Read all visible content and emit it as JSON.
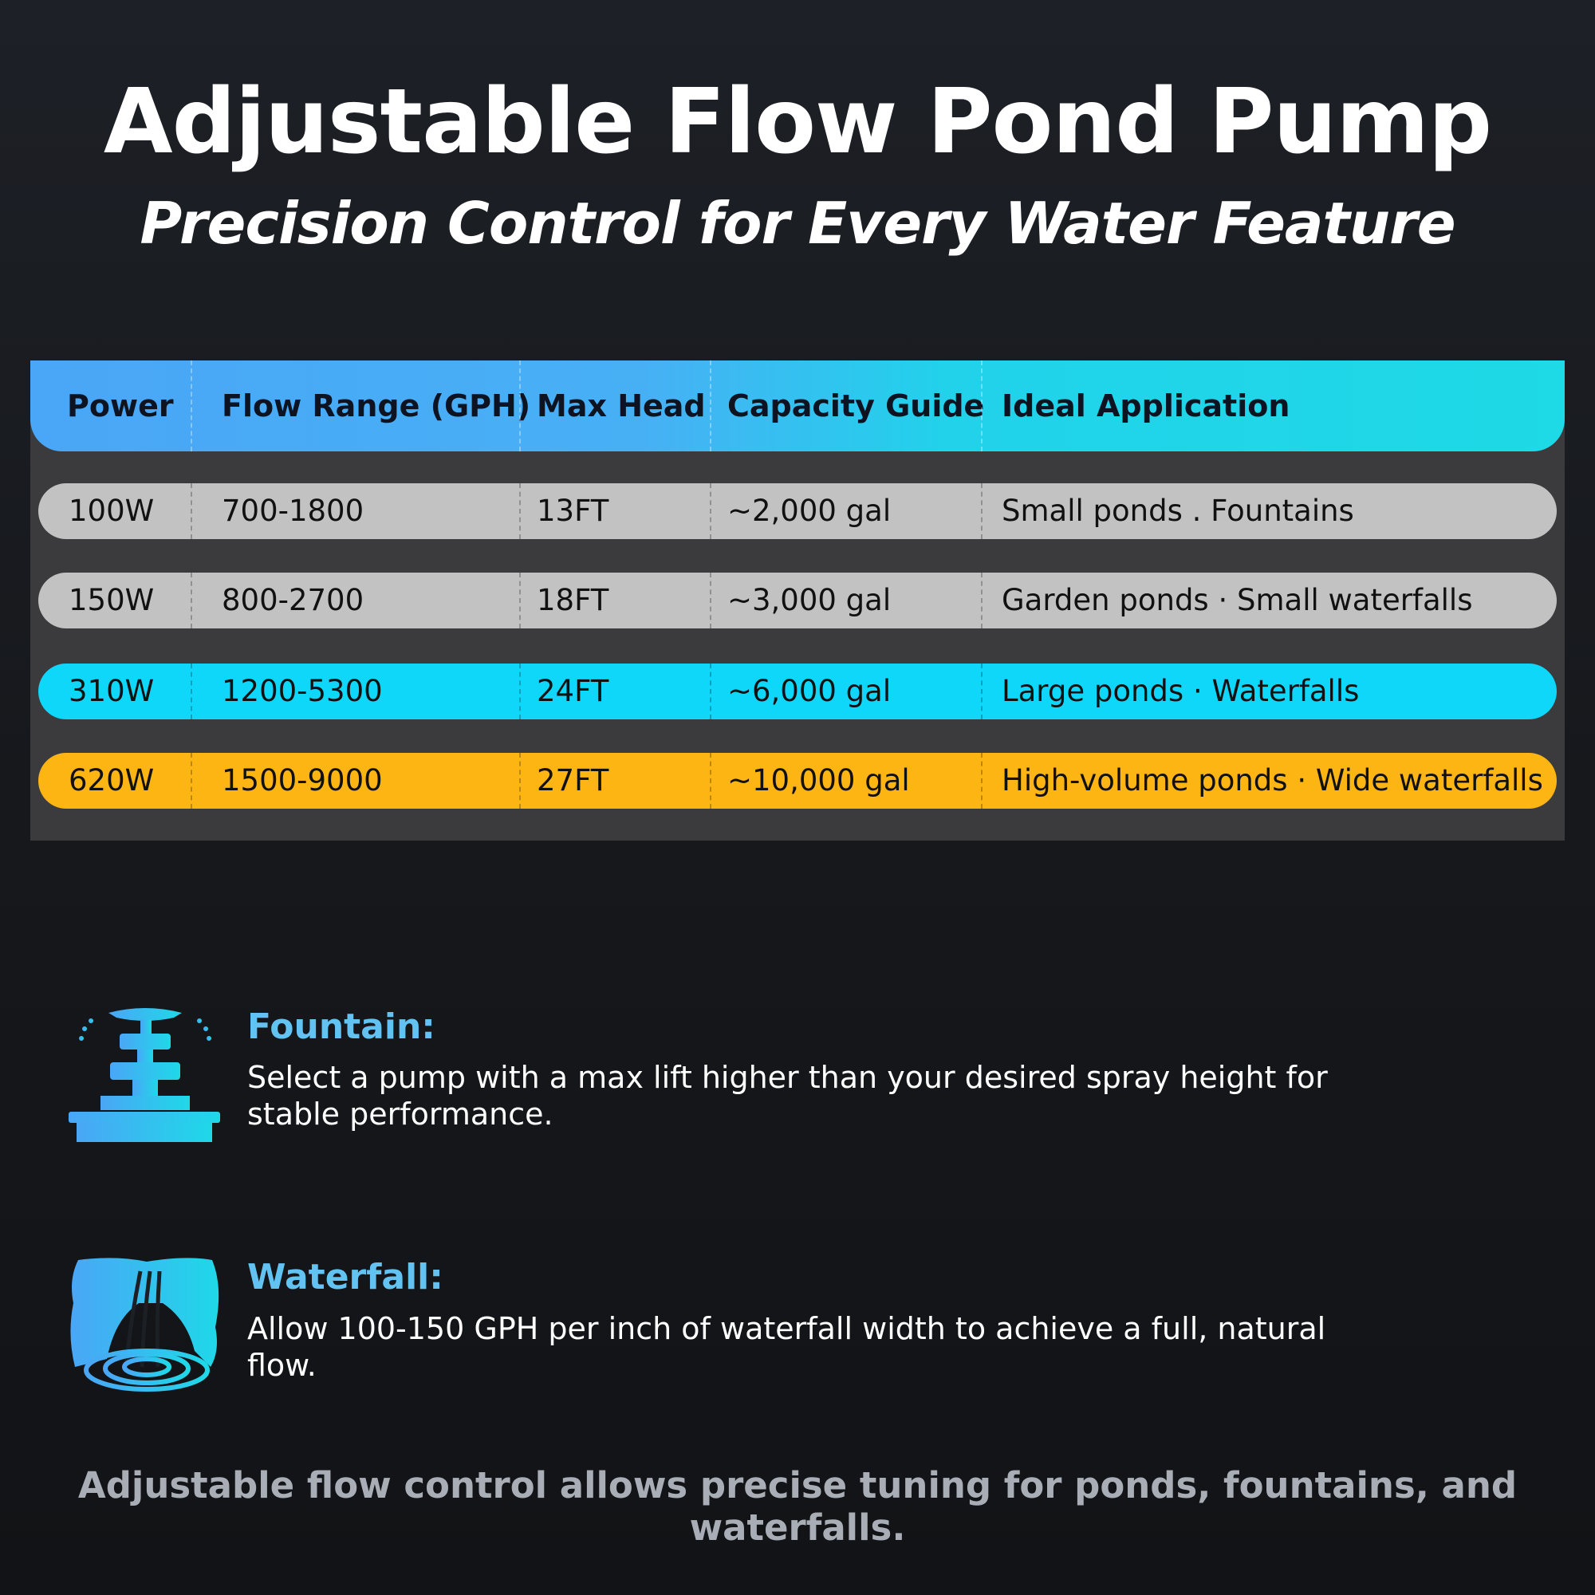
{
  "header": {
    "title": "Adjustable Flow Pond Pump",
    "subtitle": "Precision Control for Every Water Feature"
  },
  "table": {
    "headers": [
      "Power",
      "Flow Range (GPH)",
      "Max Head",
      "Capacity Guide",
      "Ideal Application"
    ],
    "rows": [
      [
        "100W",
        "700-1800",
        "13FT",
        "~2,000 gal",
        "Small ponds . Fountains"
      ],
      [
        "150W",
        "800-2700",
        "18FT",
        "~3,000 gal",
        "Garden ponds · Small waterfalls"
      ],
      [
        "310W",
        "1200-5300",
        "24FT",
        "~6,000 gal",
        "Large ponds · Waterfalls"
      ],
      [
        "620W",
        "1500-9000",
        "27FT",
        "~10,000 gal",
        "High-volume ponds · Wide waterfalls"
      ]
    ]
  },
  "tips": [
    {
      "title": "Fountain:",
      "text": "Select a pump with a max lift higher than your desired spray height for stable performance."
    },
    {
      "title": "Waterfall:",
      "text": "Allow 100-150 GPH per inch of waterfall width to achieve a full, natural flow."
    }
  ],
  "footer": "Adjustable flow control allows precise tuning for  ponds, fountains, and waterfalls."
}
